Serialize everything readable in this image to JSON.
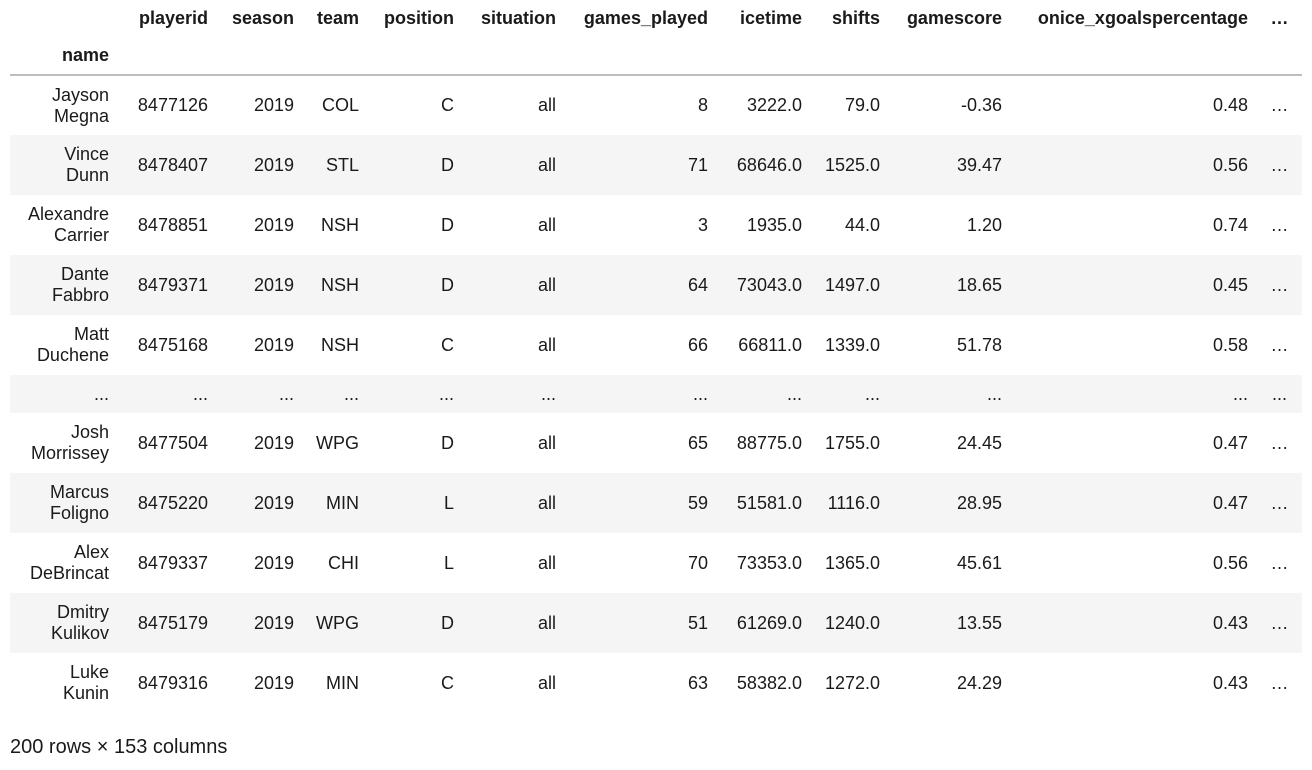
{
  "table": {
    "columns": [
      "playerid",
      "season",
      "team",
      "position",
      "situation",
      "games_played",
      "icetime",
      "shifts",
      "gamescore",
      "onice_xgoalspercentage"
    ],
    "more_columns": "…",
    "index_name": "name",
    "rows": [
      {
        "name": [
          "Jayson",
          "Megna"
        ],
        "cells": [
          "8477126",
          "2019",
          "COL",
          "C",
          "all",
          "8",
          "3222.0",
          "79.0",
          "-0.36",
          "0.48"
        ],
        "more": "…"
      },
      {
        "name": [
          "Vince",
          "Dunn"
        ],
        "cells": [
          "8478407",
          "2019",
          "STL",
          "D",
          "all",
          "71",
          "68646.0",
          "1525.0",
          "39.47",
          "0.56"
        ],
        "more": "…"
      },
      {
        "name": [
          "Alexandre",
          "Carrier"
        ],
        "cells": [
          "8478851",
          "2019",
          "NSH",
          "D",
          "all",
          "3",
          "1935.0",
          "44.0",
          "1.20",
          "0.74"
        ],
        "more": "…"
      },
      {
        "name": [
          "Dante",
          "Fabbro"
        ],
        "cells": [
          "8479371",
          "2019",
          "NSH",
          "D",
          "all",
          "64",
          "73043.0",
          "1497.0",
          "18.65",
          "0.45"
        ],
        "more": "…"
      },
      {
        "name": [
          "Matt",
          "Duchene"
        ],
        "cells": [
          "8475168",
          "2019",
          "NSH",
          "C",
          "all",
          "66",
          "66811.0",
          "1339.0",
          "51.78",
          "0.58"
        ],
        "more": "…"
      },
      {
        "name": [
          "..."
        ],
        "cells": [
          "...",
          "...",
          "...",
          "...",
          "...",
          "...",
          "...",
          "...",
          "...",
          "..."
        ],
        "more": "...",
        "ellipsis": true
      },
      {
        "name": [
          "Josh",
          "Morrissey"
        ],
        "cells": [
          "8477504",
          "2019",
          "WPG",
          "D",
          "all",
          "65",
          "88775.0",
          "1755.0",
          "24.45",
          "0.47"
        ],
        "more": "…"
      },
      {
        "name": [
          "Marcus",
          "Foligno"
        ],
        "cells": [
          "8475220",
          "2019",
          "MIN",
          "L",
          "all",
          "59",
          "51581.0",
          "1116.0",
          "28.95",
          "0.47"
        ],
        "more": "…"
      },
      {
        "name": [
          "Alex",
          "DeBrincat"
        ],
        "cells": [
          "8479337",
          "2019",
          "CHI",
          "L",
          "all",
          "70",
          "73353.0",
          "1365.0",
          "45.61",
          "0.56"
        ],
        "more": "…"
      },
      {
        "name": [
          "Dmitry",
          "Kulikov"
        ],
        "cells": [
          "8475179",
          "2019",
          "WPG",
          "D",
          "all",
          "51",
          "61269.0",
          "1240.0",
          "13.55",
          "0.43"
        ],
        "more": "…"
      },
      {
        "name": [
          "Luke",
          "Kunin"
        ],
        "cells": [
          "8479316",
          "2019",
          "MIN",
          "C",
          "all",
          "63",
          "58382.0",
          "1272.0",
          "24.29",
          "0.43"
        ],
        "more": "…"
      }
    ]
  },
  "footer": "200 rows × 153 columns"
}
